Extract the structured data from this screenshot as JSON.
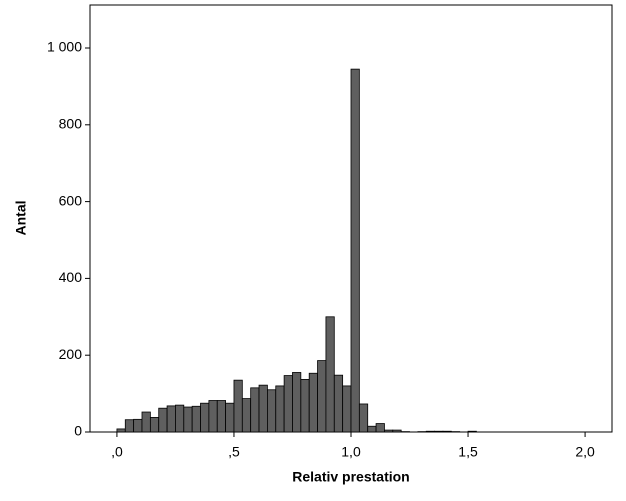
{
  "chart_data": {
    "type": "histogram",
    "x_label": "Relativ prestation",
    "y_label": "Antal",
    "bins": [
      0,
      0.0357,
      0.0714,
      0.1071,
      0.1429,
      0.1786,
      0.2143,
      0.25,
      0.2857,
      0.3214,
      0.3571,
      0.3929,
      0.4286,
      0.4643,
      0.5,
      0.5357,
      0.5714,
      0.6071,
      0.6429,
      0.6786,
      0.7143,
      0.75,
      0.7857,
      0.8214,
      0.8571,
      0.8929,
      0.9286,
      0.9643,
      1,
      1.0357,
      1.0714,
      1.1071,
      1.1429,
      1.1786,
      1.2143,
      1.25,
      1.2857,
      1.3214,
      1.3571,
      1.3929,
      1.4286,
      1.4643,
      1.5,
      1.5357
    ],
    "values": [
      8,
      32,
      33,
      52,
      38,
      62,
      68,
      70,
      65,
      67,
      75,
      82,
      82,
      75,
      135,
      87,
      115,
      122,
      110,
      120,
      147,
      155,
      137,
      153,
      186,
      300,
      148,
      120,
      945,
      73,
      15,
      22,
      5,
      5,
      1,
      0,
      1,
      2,
      2,
      2,
      1,
      0,
      2
    ],
    "color": "#5f5f5f",
    "xlim": [
      -0.115,
      2.115
    ],
    "xticks": [
      {
        "value": 0,
        "label": ",0"
      },
      {
        "value": 0.5,
        "label": ",5"
      },
      {
        "value": 1,
        "label": "1,0"
      },
      {
        "value": 1.5,
        "label": "1,5"
      },
      {
        "value": 2,
        "label": "2,0"
      }
    ],
    "ylim": [
      0,
      1112
    ],
    "yticks": [
      0,
      200,
      400,
      600,
      800,
      {
        "value": 1000,
        "label": "1 000"
      }
    ],
    "grid": false
  }
}
